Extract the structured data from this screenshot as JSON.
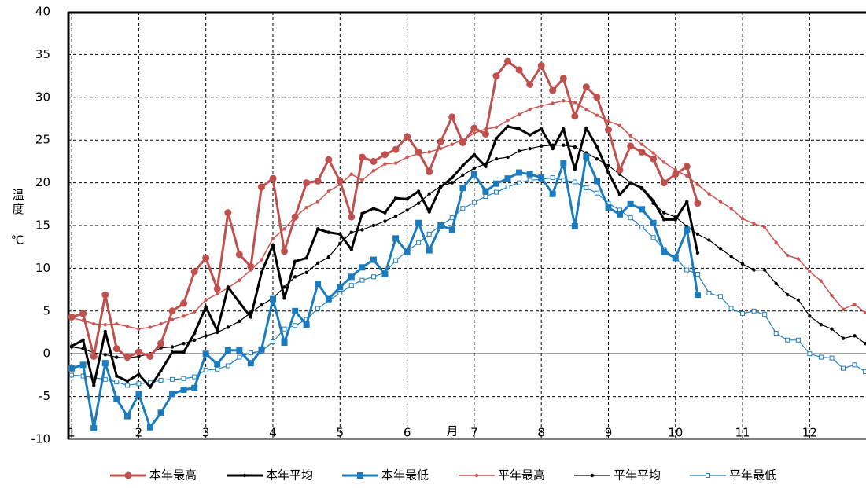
{
  "chart_data": {
    "type": "line",
    "xlabel": "月",
    "ylabel": "温度",
    "yunit": "℃",
    "x": [
      1,
      1.17,
      1.33,
      1.5,
      1.67,
      1.83,
      2,
      2.17,
      2.33,
      2.5,
      2.67,
      2.83,
      3,
      3.17,
      3.33,
      3.5,
      3.67,
      3.83,
      4,
      4.17,
      4.33,
      4.5,
      4.67,
      4.83,
      5,
      5.17,
      5.33,
      5.5,
      5.67,
      5.83,
      6,
      6.17,
      6.33,
      6.5,
      6.67,
      6.83,
      7,
      7.17,
      7.33,
      7.5,
      7.67,
      7.83,
      8,
      8.17,
      8.33,
      8.5,
      8.67,
      8.83,
      9,
      9.17,
      9.33,
      9.5,
      9.67,
      9.83,
      10,
      10.17,
      10.33,
      10.5,
      10.67,
      10.83,
      11,
      11.17,
      11.33,
      11.5,
      11.67,
      11.83,
      12,
      12.17,
      12.33,
      12.5,
      12.67,
      12.83
    ],
    "xlim": [
      0.94,
      12.84
    ],
    "xticks": [
      1,
      2,
      3,
      4,
      5,
      6,
      7,
      8,
      9,
      10,
      11,
      12
    ],
    "ylim": [
      -10,
      40
    ],
    "yticks": [
      -10,
      -5,
      0,
      5,
      10,
      15,
      20,
      25,
      30,
      35,
      40
    ],
    "grid": true,
    "legend": "bottom",
    "series": [
      {
        "name": "平年最高",
        "color": "#cd5552",
        "width": 1.5,
        "marker": "dot",
        "values": [
          4.2,
          3.9,
          3.5,
          3.4,
          3.5,
          3.2,
          2.9,
          3.1,
          3.5,
          4.0,
          4.4,
          4.9,
          6.3,
          7.0,
          7.7,
          8.6,
          9.8,
          11.0,
          13.5,
          14.6,
          16.0,
          17.1,
          17.8,
          19.0,
          19.8,
          21.0,
          20.3,
          21.4,
          22.2,
          22.3,
          23.0,
          23.4,
          23.6,
          24.0,
          24.5,
          25.0,
          25.8,
          26.3,
          26.5,
          27.3,
          28.0,
          28.6,
          29.0,
          29.3,
          29.6,
          29.4,
          28.6,
          27.9,
          27.2,
          26.7,
          25.5,
          24.5,
          23.5,
          22.4,
          21.5,
          20.8,
          19.8,
          18.7,
          17.8,
          17.0,
          15.8,
          15.2,
          14.8,
          13.0,
          11.5,
          11.1,
          9.6,
          8.5,
          6.8,
          5.2,
          5.8,
          4.8
        ]
      },
      {
        "name": "平年平均",
        "color": "#000000",
        "width": 1.2,
        "marker": "dot",
        "values": [
          0.8,
          0.6,
          0.1,
          -0.1,
          -0.4,
          -0.5,
          -0.3,
          0.0,
          0.7,
          0.8,
          1.2,
          1.6,
          2.1,
          2.5,
          3.1,
          3.8,
          4.8,
          5.7,
          6.5,
          7.8,
          9.0,
          9.5,
          10.6,
          11.3,
          12.9,
          14.2,
          14.5,
          15.0,
          15.5,
          16.1,
          16.8,
          17.6,
          18.7,
          19.6,
          20.0,
          20.9,
          21.7,
          22.2,
          22.8,
          23.0,
          23.7,
          24.0,
          24.3,
          24.4,
          24.4,
          24.2,
          23.5,
          22.8,
          22.0,
          21.0,
          20.0,
          19.3,
          17.6,
          16.5,
          16.0,
          14.9,
          14.0,
          13.3,
          12.3,
          11.4,
          10.5,
          9.8,
          9.8,
          8.2,
          6.9,
          6.3,
          4.4,
          3.4,
          2.9,
          1.8,
          2.1,
          1.2
        ]
      },
      {
        "name": "平年最低",
        "color": "#1f7fc1",
        "width": 1.2,
        "marker": "open-square",
        "values": [
          -2.5,
          -2.6,
          -2.8,
          -3.0,
          -3.3,
          -3.7,
          -3.5,
          -3.4,
          -3.1,
          -3.0,
          -2.9,
          -2.7,
          -1.9,
          -1.8,
          -1.4,
          -0.4,
          0.1,
          0.3,
          1.4,
          2.9,
          3.3,
          4.0,
          5.3,
          6.2,
          7.1,
          8.0,
          8.6,
          9.0,
          9.5,
          10.9,
          12.0,
          13.0,
          14.0,
          15.0,
          15.9,
          17.0,
          17.7,
          18.4,
          18.9,
          19.5,
          20.0,
          20.3,
          20.4,
          20.6,
          20.3,
          20.1,
          19.4,
          18.8,
          17.6,
          16.8,
          15.9,
          14.8,
          13.6,
          12.2,
          11.2,
          9.8,
          9.3,
          7.1,
          6.7,
          5.3,
          4.7,
          5.0,
          4.6,
          2.4,
          1.6,
          1.6,
          0.0,
          -0.4,
          -0.5,
          -1.7,
          -1.3,
          -2.1
        ]
      },
      {
        "name": "本年最高",
        "color": "#c0504d",
        "width": 3,
        "marker": "circle",
        "values": [
          4.3,
          4.7,
          -0.3,
          6.9,
          0.6,
          -0.4,
          0.2,
          -0.3,
          1.2,
          5.0,
          5.9,
          9.6,
          11.2,
          7.6,
          16.5,
          11.6,
          10.2,
          19.5,
          20.5,
          12.0,
          16.0,
          20.0,
          20.2,
          22.7,
          20.2,
          16.0,
          23.0,
          22.5,
          23.3,
          23.9,
          25.4,
          23.6,
          21.3,
          24.8,
          27.7,
          24.7,
          26.4,
          25.7,
          32.5,
          34.2,
          33.2,
          31.5,
          33.7,
          30.8,
          32.2,
          27.8,
          31.2,
          30.0,
          26.2,
          21.5,
          24.3,
          23.6,
          22.8,
          20.0,
          21.0,
          21.9,
          17.6,
          null,
          null,
          null,
          null,
          null,
          null,
          null,
          null,
          null,
          null,
          null,
          null,
          null,
          null,
          null
        ]
      },
      {
        "name": "本年平均",
        "color": "#000000",
        "width": 3,
        "marker": "dot",
        "values": [
          0.9,
          1.6,
          -3.7,
          2.6,
          -2.6,
          -3.2,
          -2.4,
          -3.9,
          -2.0,
          0.2,
          0.2,
          2.4,
          5.5,
          2.7,
          7.8,
          6.0,
          4.3,
          9.5,
          12.7,
          6.5,
          10.8,
          11.2,
          14.6,
          14.2,
          14.0,
          12.2,
          16.4,
          17.0,
          16.5,
          18.2,
          18.1,
          19.0,
          16.6,
          19.5,
          20.6,
          22.0,
          23.3,
          21.9,
          25.2,
          26.6,
          26.3,
          25.6,
          26.3,
          24.0,
          26.3,
          21.6,
          26.4,
          24.2,
          21.2,
          18.6,
          20.0,
          19.4,
          17.9,
          15.7,
          15.7,
          17.8,
          11.8,
          null,
          null,
          null,
          null,
          null,
          null,
          null,
          null,
          null,
          null,
          null,
          null,
          null,
          null,
          null
        ]
      },
      {
        "name": "本年最低",
        "color": "#1a7bbf",
        "width": 3,
        "marker": "square",
        "values": [
          -1.7,
          -1.3,
          -8.7,
          -1.1,
          -5.3,
          -7.3,
          -4.7,
          -8.6,
          -6.9,
          -4.7,
          -4.2,
          -4.0,
          0.0,
          -1.2,
          0.4,
          0.4,
          -1.1,
          0.5,
          6.4,
          1.3,
          5.0,
          3.4,
          8.2,
          6.4,
          7.8,
          9.0,
          10.1,
          11.0,
          9.3,
          13.5,
          11.9,
          15.3,
          12.1,
          15.0,
          14.5,
          19.4,
          21.0,
          19.0,
          19.9,
          20.5,
          21.2,
          21.0,
          20.6,
          18.7,
          22.3,
          14.9,
          23.1,
          20.2,
          17.1,
          16.3,
          17.5,
          16.9,
          15.3,
          11.9,
          11.2,
          14.5,
          6.9,
          null,
          null,
          null,
          null,
          null,
          null,
          null,
          null,
          null,
          null,
          null,
          null,
          null,
          null,
          null
        ]
      }
    ],
    "legend_order": [
      3,
      4,
      5,
      0,
      1,
      2
    ]
  }
}
